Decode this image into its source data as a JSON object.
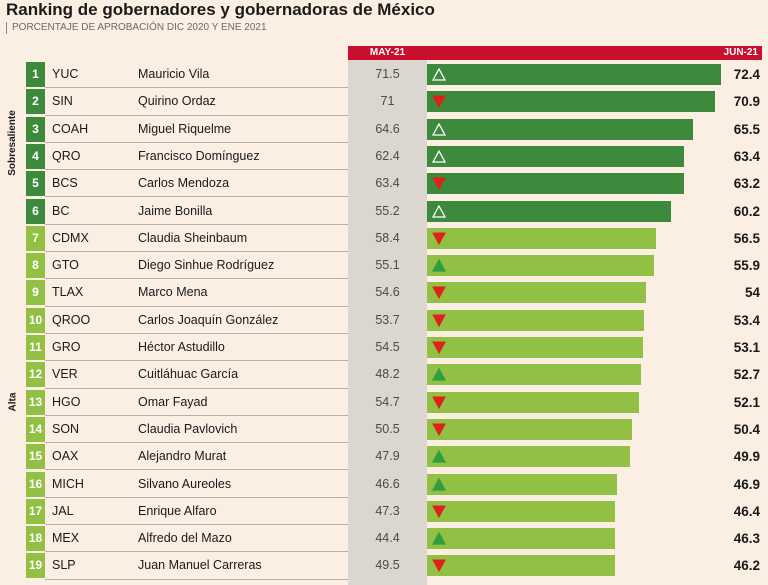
{
  "header": {
    "title": "Ranking de gobernadores y gobernadoras de México",
    "subtitle": "PORCENTAJE DE APROBACIÓN DIC 2020 Y ENE 2021"
  },
  "groups": {
    "top": "Sobresaliente",
    "high": "Alta"
  },
  "colors": {
    "dark_green": "#3d8a3d",
    "light_green": "#92c044",
    "up_arrow": "#2e9e3e",
    "down_arrow": "#e0201b",
    "header_red": "#c8102e"
  },
  "chart_data": {
    "type": "bar",
    "columns": {
      "previous": "MAY-21",
      "current": "JUN-21"
    },
    "xlim": [
      0,
      72.4
    ],
    "rows": [
      {
        "rank": "1",
        "state": "YUC",
        "governor": "Mauricio Vila",
        "may": "71.5",
        "jun": "72.4",
        "trend": "up",
        "group": "top"
      },
      {
        "rank": "2",
        "state": "SIN",
        "governor": "Quirino Ordaz",
        "may": "71",
        "jun": "70.9",
        "trend": "down",
        "group": "top"
      },
      {
        "rank": "3",
        "state": "COAH",
        "governor": "Miguel Riquelme",
        "may": "64.6",
        "jun": "65.5",
        "trend": "up",
        "group": "top"
      },
      {
        "rank": "4",
        "state": "QRO",
        "governor": "Francisco Domínguez",
        "may": "62.4",
        "jun": "63.4",
        "trend": "up",
        "group": "top"
      },
      {
        "rank": "5",
        "state": "BCS",
        "governor": "Carlos Mendoza",
        "may": "63.4",
        "jun": "63.2",
        "trend": "down",
        "group": "top"
      },
      {
        "rank": "6",
        "state": "BC",
        "governor": "Jaime Bonilla",
        "may": "55.2",
        "jun": "60.2",
        "trend": "up",
        "group": "top"
      },
      {
        "rank": "7",
        "state": "CDMX",
        "governor": "Claudia Sheinbaum",
        "may": "58.4",
        "jun": "56.5",
        "trend": "down",
        "group": "high"
      },
      {
        "rank": "8",
        "state": "GTO",
        "governor": "Diego Sinhue Rodríguez",
        "may": "55.1",
        "jun": "55.9",
        "trend": "up",
        "group": "high"
      },
      {
        "rank": "9",
        "state": "TLAX",
        "governor": "Marco Mena",
        "may": "54.6",
        "jun": "54",
        "trend": "down",
        "group": "high"
      },
      {
        "rank": "10",
        "state": "QROO",
        "governor": "Carlos Joaquín González",
        "may": "53.7",
        "jun": "53.4",
        "trend": "down",
        "group": "high"
      },
      {
        "rank": "11",
        "state": "GRO",
        "governor": "Héctor Astudillo",
        "may": "54.5",
        "jun": "53.1",
        "trend": "down",
        "group": "high"
      },
      {
        "rank": "12",
        "state": "VER",
        "governor": "Cuitláhuac García",
        "may": "48.2",
        "jun": "52.7",
        "trend": "up",
        "group": "high"
      },
      {
        "rank": "13",
        "state": "HGO",
        "governor": "Omar Fayad",
        "may": "54.7",
        "jun": "52.1",
        "trend": "down",
        "group": "high"
      },
      {
        "rank": "14",
        "state": "SON",
        "governor": "Claudia Pavlovich",
        "may": "50.5",
        "jun": "50.4",
        "trend": "down",
        "group": "high"
      },
      {
        "rank": "15",
        "state": "OAX",
        "governor": "Alejandro Murat",
        "may": "47.9",
        "jun": "49.9",
        "trend": "up",
        "group": "high"
      },
      {
        "rank": "16",
        "state": "MICH",
        "governor": "Silvano Aureoles",
        "may": "46.6",
        "jun": "46.9",
        "trend": "up",
        "group": "high"
      },
      {
        "rank": "17",
        "state": "JAL",
        "governor": "Enrique Alfaro",
        "may": "47.3",
        "jun": "46.4",
        "trend": "down",
        "group": "high"
      },
      {
        "rank": "18",
        "state": "MEX",
        "governor": "Alfredo del Mazo",
        "may": "44.4",
        "jun": "46.3",
        "trend": "up",
        "group": "high"
      },
      {
        "rank": "19",
        "state": "SLP",
        "governor": "Juan Manuel Carreras",
        "may": "49.5",
        "jun": "46.2",
        "trend": "down",
        "group": "high"
      }
    ]
  }
}
